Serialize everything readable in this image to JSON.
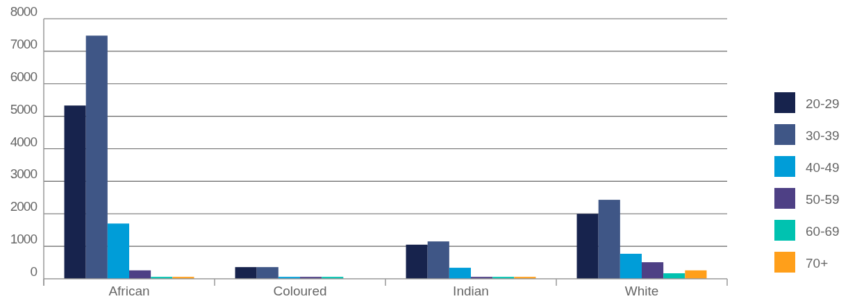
{
  "chart_data": {
    "type": "bar",
    "categories": [
      "African",
      "Coloured",
      "Indian",
      "White"
    ],
    "series": [
      {
        "name": "20-29",
        "color": "#17234d",
        "values": [
          5330,
          360,
          1050,
          2000
        ]
      },
      {
        "name": "30-39",
        "color": "#3f5686",
        "values": [
          7480,
          360,
          1150,
          2430
        ]
      },
      {
        "name": "40-49",
        "color": "#009dd8",
        "values": [
          1700,
          60,
          340,
          770
        ]
      },
      {
        "name": "50-59",
        "color": "#4e4085",
        "values": [
          260,
          60,
          60,
          510
        ]
      },
      {
        "name": "60-69",
        "color": "#00c2b0",
        "values": [
          60,
          60,
          60,
          170
        ]
      },
      {
        "name": "70+",
        "color": "#ff9f1a",
        "values": [
          60,
          0,
          60,
          260
        ]
      }
    ],
    "ylim": [
      0,
      8000
    ],
    "yticks": [
      0,
      1000,
      2000,
      3000,
      4000,
      5000,
      6000,
      7000,
      8000
    ],
    "grid": "y",
    "legend": "right"
  }
}
